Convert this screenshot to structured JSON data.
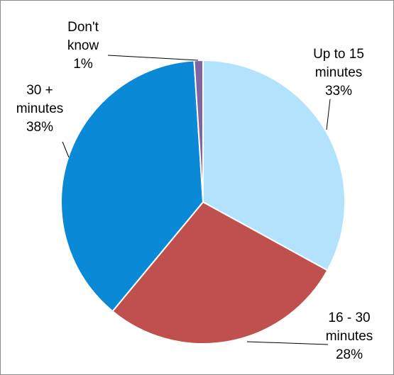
{
  "chart_data": {
    "type": "pie",
    "title": "",
    "legend": "none",
    "slices": [
      {
        "label_lines": [
          "Up to 15",
          "minutes",
          "33%"
        ],
        "value": 33,
        "color": "#b3e2fd"
      },
      {
        "label_lines": [
          "16 - 30",
          "minutes",
          "28%"
        ],
        "value": 28,
        "color": "#c0504d"
      },
      {
        "label_lines": [
          "30 +",
          "minutes",
          "38%"
        ],
        "value": 38,
        "color": "#0a8ad6"
      },
      {
        "label_lines": [
          "Don't",
          "know",
          "1%"
        ],
        "value": 1,
        "color": "#8064a2"
      }
    ]
  }
}
